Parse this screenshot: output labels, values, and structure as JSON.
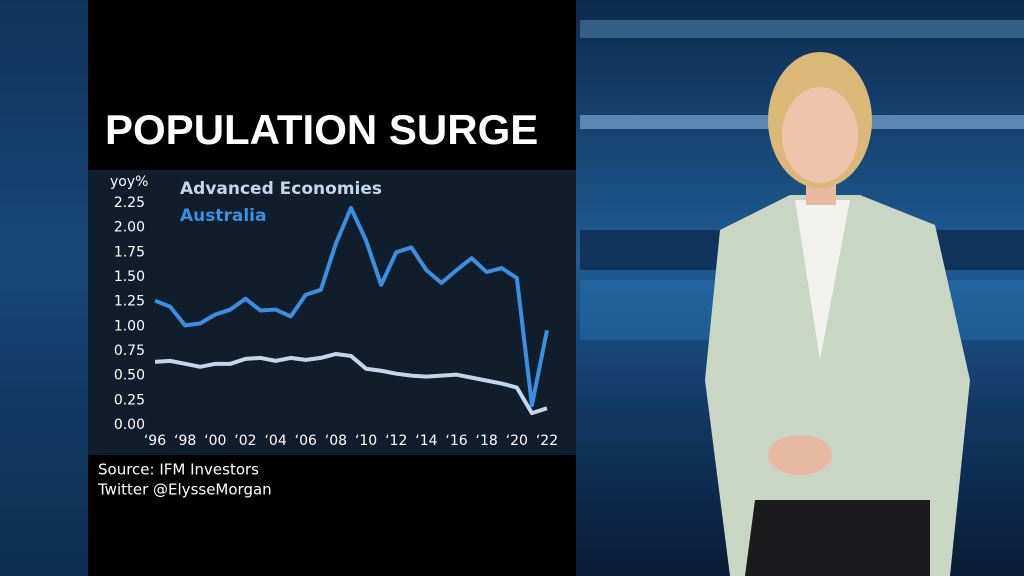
{
  "chart_data": {
    "type": "line",
    "title": "POPULATION SURGE",
    "y_label": "yoy%",
    "x": [
      1996,
      1997,
      1998,
      1999,
      2000,
      2001,
      2002,
      2003,
      2004,
      2005,
      2006,
      2007,
      2008,
      2009,
      2010,
      2011,
      2012,
      2013,
      2014,
      2015,
      2016,
      2017,
      2018,
      2019,
      2020,
      2021,
      2022
    ],
    "series": [
      {
        "name": "Advanced Economies",
        "color": "#c3d6ea",
        "values": [
          0.64,
          0.65,
          0.62,
          0.59,
          0.62,
          0.62,
          0.67,
          0.68,
          0.65,
          0.68,
          0.66,
          0.68,
          0.72,
          0.7,
          0.57,
          0.55,
          0.52,
          0.5,
          0.49,
          0.5,
          0.51,
          0.48,
          0.45,
          0.42,
          0.38,
          0.12,
          0.17
        ]
      },
      {
        "name": "Australia",
        "color": "#3a8fe0",
        "values": [
          1.26,
          1.2,
          1.01,
          1.03,
          1.12,
          1.17,
          1.28,
          1.16,
          1.17,
          1.1,
          1.32,
          1.37,
          1.84,
          2.2,
          1.87,
          1.42,
          1.75,
          1.8,
          1.57,
          1.44,
          1.57,
          1.69,
          1.55,
          1.59,
          1.49,
          0.2,
          0.96
        ]
      }
    ],
    "xlim": [
      1996,
      2022
    ],
    "xticks": [
      {
        "value": 1996,
        "label": "‘96"
      },
      {
        "value": 1998,
        "label": "‘98"
      },
      {
        "value": 2000,
        "label": "‘00"
      },
      {
        "value": 2002,
        "label": "‘02"
      },
      {
        "value": 2004,
        "label": "‘04"
      },
      {
        "value": 2006,
        "label": "‘06"
      },
      {
        "value": 2008,
        "label": "‘08"
      },
      {
        "value": 2010,
        "label": "‘10"
      },
      {
        "value": 2012,
        "label": "‘12"
      },
      {
        "value": 2014,
        "label": "‘14"
      },
      {
        "value": 2016,
        "label": "‘16"
      },
      {
        "value": 2018,
        "label": "‘18"
      },
      {
        "value": 2020,
        "label": "‘20"
      },
      {
        "value": 2022,
        "label": "‘22"
      }
    ],
    "ylim": [
      0,
      2.25
    ],
    "yticks": [
      {
        "value": 0,
        "label": "0.00"
      },
      {
        "value": 0.25,
        "label": "0.25"
      },
      {
        "value": 0.5,
        "label": "0.50"
      },
      {
        "value": 0.75,
        "label": "0.75"
      },
      {
        "value": 1,
        "label": "1.00"
      },
      {
        "value": 1.25,
        "label": "1.25"
      },
      {
        "value": 1.5,
        "label": "1.50"
      },
      {
        "value": 1.75,
        "label": "1.75"
      },
      {
        "value": 2,
        "label": "2.00"
      },
      {
        "value": 2.25,
        "label": "2.25"
      }
    ],
    "source": [
      "Source: IFM Investors",
      "Twitter @ElysseMorgan"
    ]
  }
}
